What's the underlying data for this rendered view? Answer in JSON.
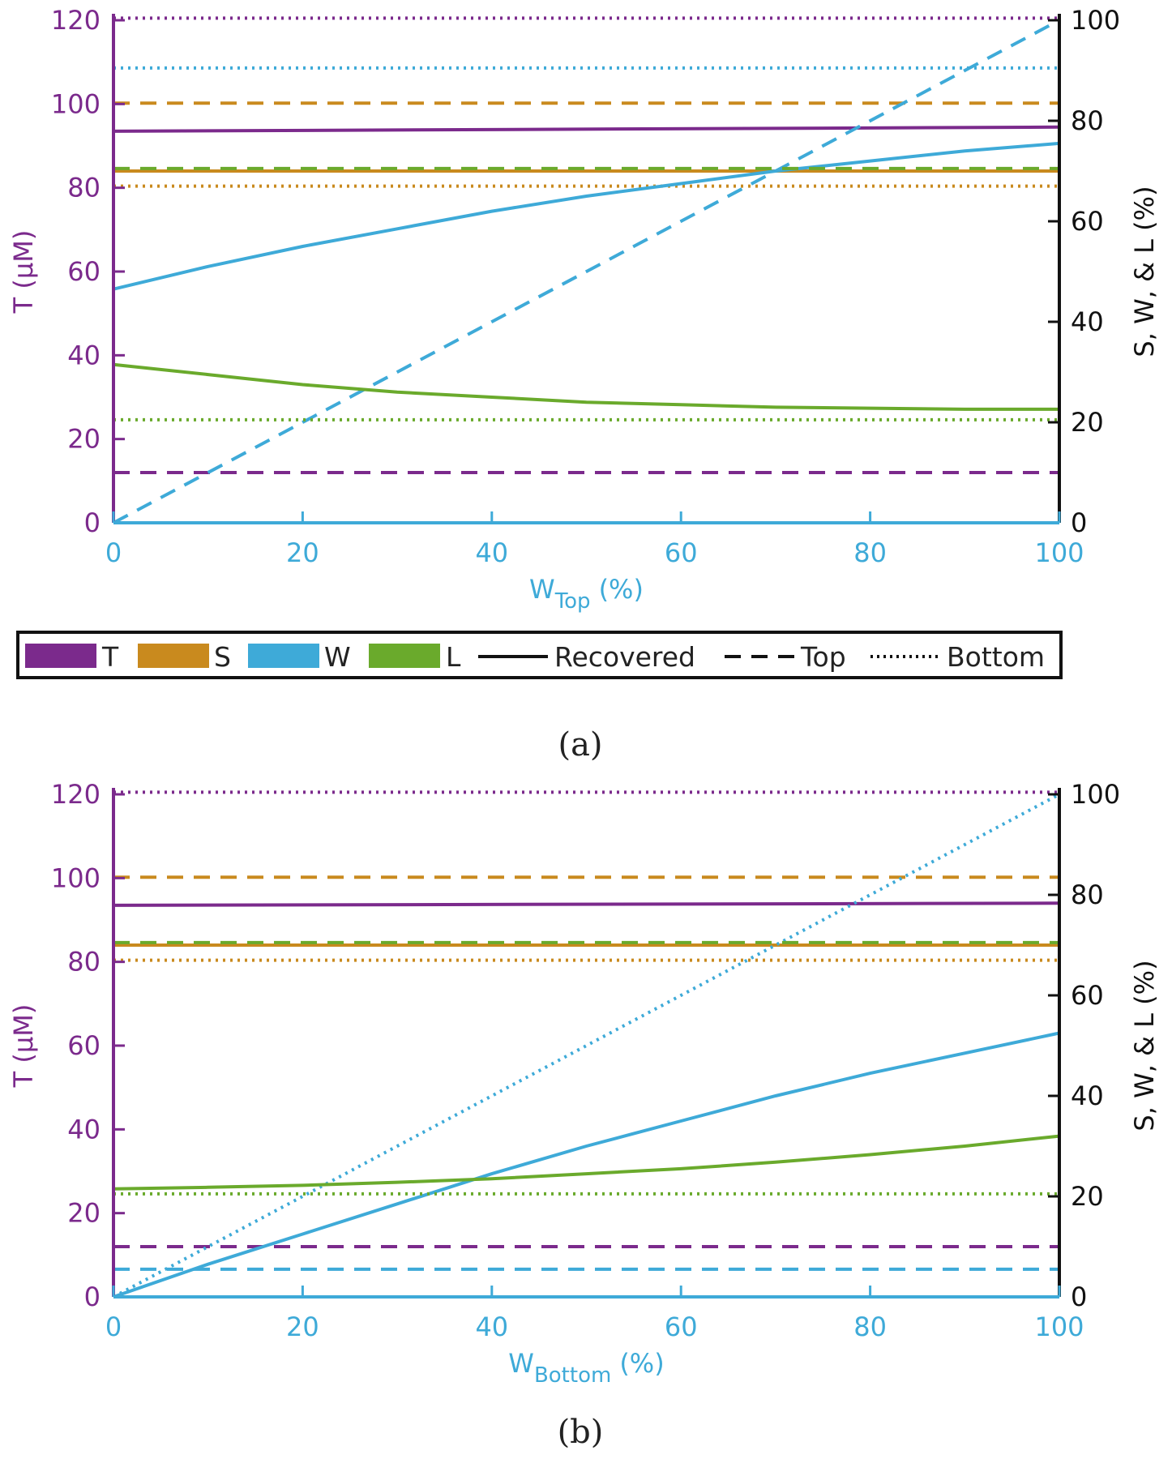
{
  "colors": {
    "T": "#7B2A8C",
    "S": "#C98A1E",
    "W": "#3EAAD8",
    "L": "#6AAA2C",
    "axis_left": "#7B2A8C",
    "axis_bottom": "#3EAAD8",
    "axis_right": "#111111"
  },
  "legend": {
    "entries": [
      {
        "key": "T",
        "label": "T"
      },
      {
        "key": "S",
        "label": "S"
      },
      {
        "key": "W",
        "label": "W"
      },
      {
        "key": "L",
        "label": "L"
      }
    ],
    "styles": [
      {
        "style": "solid",
        "label": "Recovered"
      },
      {
        "style": "dashed",
        "label": "Top"
      },
      {
        "style": "dotted",
        "label": "Bottom"
      }
    ]
  },
  "chart_data": [
    {
      "type": "line",
      "caption": "(a)",
      "xlabel_main": "W",
      "xlabel_sub": "Top",
      "xlabel_unit": "(%)",
      "ylabel_left": "T (μM)",
      "ylabel_right": "S, W, & L (%)",
      "xlim": [
        0,
        100
      ],
      "ylim_left": [
        0,
        120
      ],
      "ylim_right": [
        0,
        100
      ],
      "x_ticks": [
        "0",
        "20",
        "40",
        "60",
        "80",
        "100"
      ],
      "y_left_ticks": [
        "0",
        "20",
        "40",
        "60",
        "80",
        "100",
        "120"
      ],
      "y_right_ticks": [
        "0",
        "20",
        "40",
        "60",
        "80",
        "100"
      ],
      "series": [
        {
          "name": "T Recovered",
          "var": "T",
          "style": "solid",
          "axis": "left",
          "x": [
            0,
            100
          ],
          "y": [
            93.5,
            94.5
          ]
        },
        {
          "name": "T Top",
          "var": "T",
          "style": "dashed",
          "axis": "left",
          "x": [
            0,
            100
          ],
          "y": [
            12,
            12
          ]
        },
        {
          "name": "T Bottom",
          "var": "T",
          "style": "dotted",
          "axis": "left",
          "x": [
            0,
            100
          ],
          "y": [
            120.5,
            120.5
          ]
        },
        {
          "name": "S Recovered",
          "var": "S",
          "style": "solid",
          "axis": "right",
          "x": [
            0,
            100
          ],
          "y": [
            70,
            70
          ]
        },
        {
          "name": "S Top",
          "var": "S",
          "style": "dashed",
          "axis": "right",
          "x": [
            0,
            100
          ],
          "y": [
            83.5,
            83.5
          ]
        },
        {
          "name": "S Bottom",
          "var": "S",
          "style": "dotted",
          "axis": "right",
          "x": [
            0,
            100
          ],
          "y": [
            67,
            67
          ]
        },
        {
          "name": "W Recovered",
          "var": "W",
          "style": "solid",
          "axis": "right",
          "x": [
            0,
            10,
            20,
            30,
            40,
            50,
            60,
            70,
            80,
            90,
            100
          ],
          "y": [
            46.5,
            51,
            55,
            58.5,
            62,
            65,
            67.5,
            70,
            72,
            74,
            75.5
          ]
        },
        {
          "name": "W Top",
          "var": "W",
          "style": "dashed",
          "axis": "right",
          "x": [
            0,
            100
          ],
          "y": [
            0,
            100
          ]
        },
        {
          "name": "W Bottom",
          "var": "W",
          "style": "dotted",
          "axis": "right",
          "x": [
            0,
            100
          ],
          "y": [
            90.5,
            90.5
          ]
        },
        {
          "name": "L Recovered",
          "var": "L",
          "style": "solid",
          "axis": "right",
          "x": [
            0,
            10,
            20,
            30,
            40,
            50,
            60,
            70,
            80,
            90,
            100
          ],
          "y": [
            31.5,
            29.5,
            27.5,
            26,
            25,
            24,
            23.5,
            23,
            22.8,
            22.6,
            22.6
          ]
        },
        {
          "name": "L Top",
          "var": "L",
          "style": "dashed",
          "axis": "right",
          "x": [
            0,
            100
          ],
          "y": [
            70.5,
            70.5
          ]
        },
        {
          "name": "L Bottom",
          "var": "L",
          "style": "dotted",
          "axis": "right",
          "x": [
            0,
            100
          ],
          "y": [
            20.5,
            20.5
          ]
        }
      ]
    },
    {
      "type": "line",
      "caption": "(b)",
      "xlabel_main": "W",
      "xlabel_sub": "Bottom",
      "xlabel_unit": "(%)",
      "ylabel_left": "T (μM)",
      "ylabel_right": "S, W, & L (%)",
      "xlim": [
        0,
        100
      ],
      "ylim_left": [
        0,
        120
      ],
      "ylim_right": [
        0,
        100
      ],
      "x_ticks": [
        "0",
        "20",
        "40",
        "60",
        "80",
        "100"
      ],
      "y_left_ticks": [
        "0",
        "20",
        "40",
        "60",
        "80",
        "100",
        "120"
      ],
      "y_right_ticks": [
        "0",
        "20",
        "40",
        "60",
        "80",
        "100"
      ],
      "series": [
        {
          "name": "T Recovered",
          "var": "T",
          "style": "solid",
          "axis": "left",
          "x": [
            0,
            100
          ],
          "y": [
            93.5,
            94
          ]
        },
        {
          "name": "T Top",
          "var": "T",
          "style": "dashed",
          "axis": "left",
          "x": [
            0,
            100
          ],
          "y": [
            12,
            12
          ]
        },
        {
          "name": "T Bottom",
          "var": "T",
          "style": "dotted",
          "axis": "left",
          "x": [
            0,
            100
          ],
          "y": [
            120.5,
            120.5
          ]
        },
        {
          "name": "S Recovered",
          "var": "S",
          "style": "solid",
          "axis": "right",
          "x": [
            0,
            100
          ],
          "y": [
            70,
            70
          ]
        },
        {
          "name": "S Top",
          "var": "S",
          "style": "dashed",
          "axis": "right",
          "x": [
            0,
            100
          ],
          "y": [
            83.5,
            83.5
          ]
        },
        {
          "name": "S Bottom",
          "var": "S",
          "style": "dotted",
          "axis": "right",
          "x": [
            0,
            100
          ],
          "y": [
            67,
            67
          ]
        },
        {
          "name": "W Recovered",
          "var": "W",
          "style": "solid",
          "axis": "right",
          "x": [
            0,
            10,
            20,
            30,
            40,
            50,
            60,
            70,
            80,
            90,
            100
          ],
          "y": [
            0,
            6.5,
            12.5,
            18.5,
            24.5,
            30,
            35,
            40,
            44.5,
            48.5,
            52.5
          ]
        },
        {
          "name": "W Top",
          "var": "W",
          "style": "dashed",
          "axis": "right",
          "x": [
            0,
            100
          ],
          "y": [
            5.5,
            5.5
          ]
        },
        {
          "name": "W Bottom",
          "var": "W",
          "style": "dotted",
          "axis": "right",
          "x": [
            0,
            100
          ],
          "y": [
            0,
            100
          ]
        },
        {
          "name": "L Recovered",
          "var": "L",
          "style": "solid",
          "axis": "right",
          "x": [
            0,
            10,
            20,
            30,
            40,
            50,
            60,
            70,
            80,
            90,
            100
          ],
          "y": [
            21.5,
            21.8,
            22.2,
            22.8,
            23.5,
            24.5,
            25.5,
            26.8,
            28.3,
            30,
            32
          ]
        },
        {
          "name": "L Top",
          "var": "L",
          "style": "dashed",
          "axis": "right",
          "x": [
            0,
            100
          ],
          "y": [
            70.5,
            70.5
          ]
        },
        {
          "name": "L Bottom",
          "var": "L",
          "style": "dotted",
          "axis": "right",
          "x": [
            0,
            100
          ],
          "y": [
            20.5,
            20.5
          ]
        }
      ]
    }
  ]
}
